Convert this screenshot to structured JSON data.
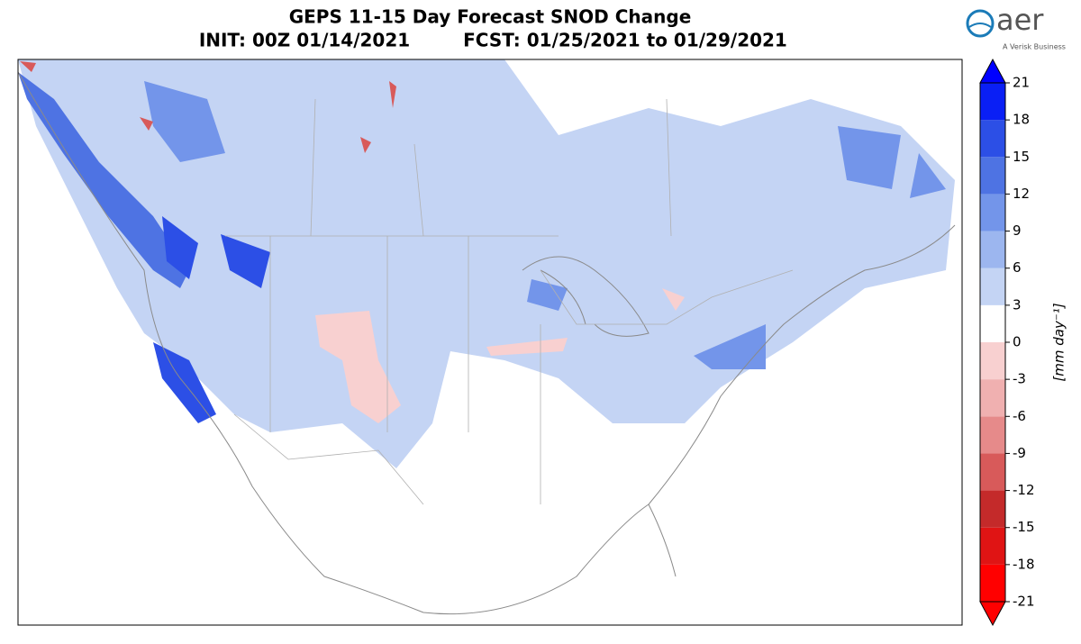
{
  "header": {
    "title": "GEPS 11-15 Day Forecast SNOD Change",
    "init": "INIT: 00Z 01/14/2021",
    "forecast": "FCST: 01/25/2021 to 01/29/2021"
  },
  "logo": {
    "name": "aer",
    "tagline": "A Verisk Business"
  },
  "colorbar": {
    "label": "[mm day⁻¹]",
    "ticks": [
      -21,
      -18,
      -15,
      -12,
      -9,
      -6,
      -3,
      0,
      3,
      6,
      9,
      12,
      15,
      18,
      21
    ],
    "colors": [
      "#ff0000",
      "#e01414",
      "#c42a2a",
      "#d85a5a",
      "#e68a8a",
      "#f0b0b0",
      "#f8d0d0",
      "#ffffff",
      "#c4d4f4",
      "#9cb6ef",
      "#7395ea",
      "#4e73e3",
      "#2c4fe6",
      "#0a1ff5"
    ],
    "over_color": "#0000ff",
    "under_color": "#ff0000"
  }
}
